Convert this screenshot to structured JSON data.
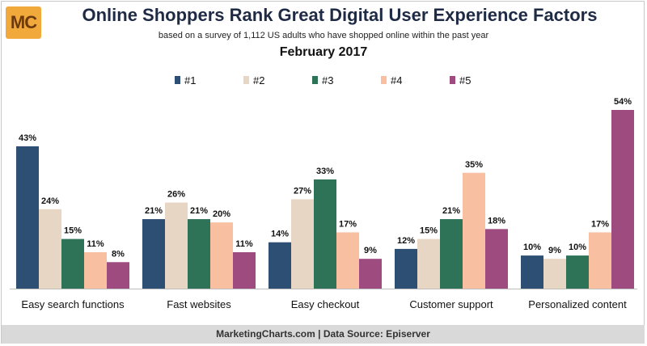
{
  "header": {
    "logo_text": "MC",
    "title": "Online Shoppers Rank Great Digital User Experience Factors",
    "subtitle": "based on a survey of 1,112 US adults who have shopped online within the past year",
    "date": "February 2017"
  },
  "footer": {
    "text": "MarketingCharts.com | Data Source: Episerver"
  },
  "chart_data": {
    "type": "bar",
    "categories": [
      "Easy search functions",
      "Fast websites",
      "Easy checkout",
      "Customer support",
      "Personalized content"
    ],
    "series": [
      {
        "name": "#1",
        "color": "#2e4f74",
        "values": [
          43,
          21,
          14,
          12,
          10
        ]
      },
      {
        "name": "#2",
        "color": "#e8d6c4",
        "values": [
          24,
          26,
          27,
          15,
          9
        ]
      },
      {
        "name": "#3",
        "color": "#2e7358",
        "values": [
          15,
          21,
          33,
          21,
          10
        ]
      },
      {
        "name": "#4",
        "color": "#f8c0a0",
        "values": [
          11,
          20,
          17,
          35,
          17
        ]
      },
      {
        "name": "#5",
        "color": "#9e4b80",
        "values": [
          8,
          11,
          9,
          18,
          54
        ]
      }
    ],
    "value_suffix": "%",
    "ylim": [
      0,
      54
    ],
    "legend_position": "top",
    "grid": false
  }
}
